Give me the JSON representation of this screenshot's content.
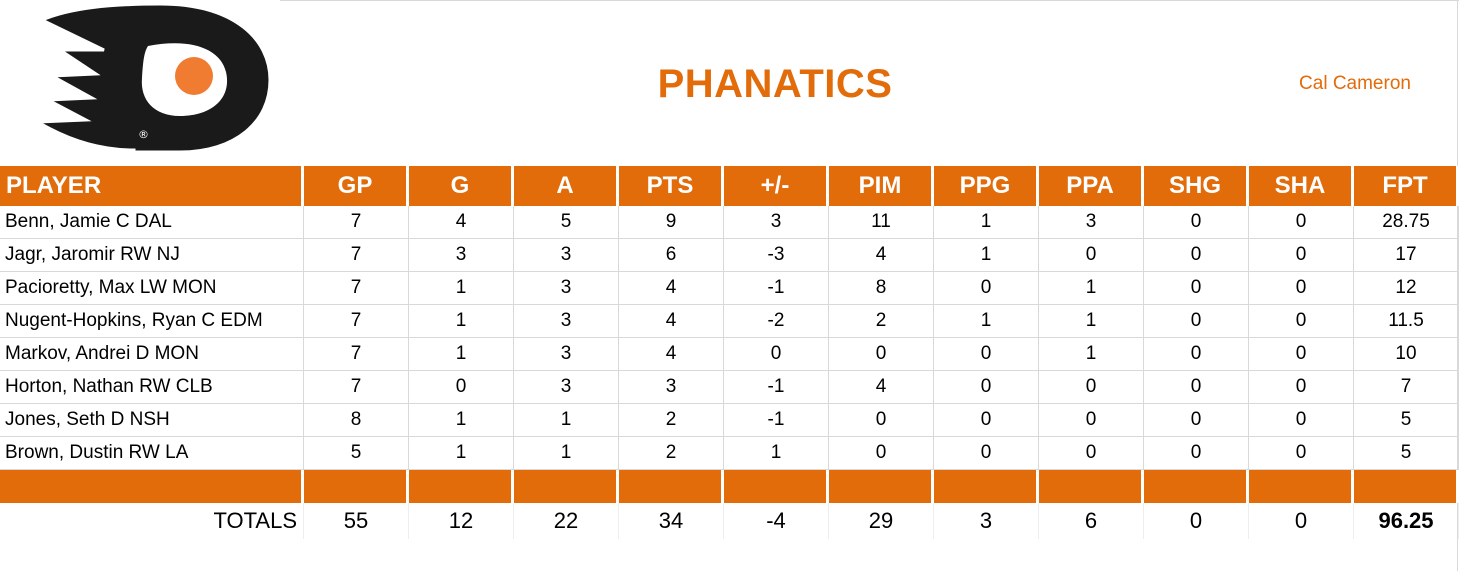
{
  "header": {
    "team_name": "PHANATICS",
    "owner": "Cal Cameron",
    "logo_icon": "flyers-logo-icon"
  },
  "colors": {
    "accent": "#e26b0a",
    "logo_black": "#1a1a1a",
    "logo_orange": "#f07c32"
  },
  "table": {
    "columns": [
      "PLAYER",
      "GP",
      "G",
      "A",
      "PTS",
      "+/-",
      "PIM",
      "PPG",
      "PPA",
      "SHG",
      "SHA",
      "FPT"
    ],
    "rows": [
      [
        "Benn, Jamie C DAL",
        "7",
        "4",
        "5",
        "9",
        "3",
        "11",
        "1",
        "3",
        "0",
        "0",
        "28.75"
      ],
      [
        "Jagr, Jaromir RW NJ",
        "7",
        "3",
        "3",
        "6",
        "-3",
        "4",
        "1",
        "0",
        "0",
        "0",
        "17"
      ],
      [
        "Pacioretty, Max LW MON",
        "7",
        "1",
        "3",
        "4",
        "-1",
        "8",
        "0",
        "1",
        "0",
        "0",
        "12"
      ],
      [
        "Nugent-Hopkins, Ryan C EDM",
        "7",
        "1",
        "3",
        "4",
        "-2",
        "2",
        "1",
        "1",
        "0",
        "0",
        "11.5"
      ],
      [
        "Markov, Andrei D MON",
        "7",
        "1",
        "3",
        "4",
        "0",
        "0",
        "0",
        "1",
        "0",
        "0",
        "10"
      ],
      [
        "Horton, Nathan RW CLB",
        "7",
        "0",
        "3",
        "3",
        "-1",
        "4",
        "0",
        "0",
        "0",
        "0",
        "7"
      ],
      [
        "Jones, Seth D NSH",
        "8",
        "1",
        "1",
        "2",
        "-1",
        "0",
        "0",
        "0",
        "0",
        "0",
        "5"
      ],
      [
        "Brown, Dustin RW LA",
        "5",
        "1",
        "1",
        "2",
        "1",
        "0",
        "0",
        "0",
        "0",
        "0",
        "5"
      ]
    ],
    "totals": [
      "TOTALS",
      "55",
      "12",
      "22",
      "34",
      "-4",
      "29",
      "3",
      "6",
      "0",
      "0",
      "96.25"
    ]
  }
}
